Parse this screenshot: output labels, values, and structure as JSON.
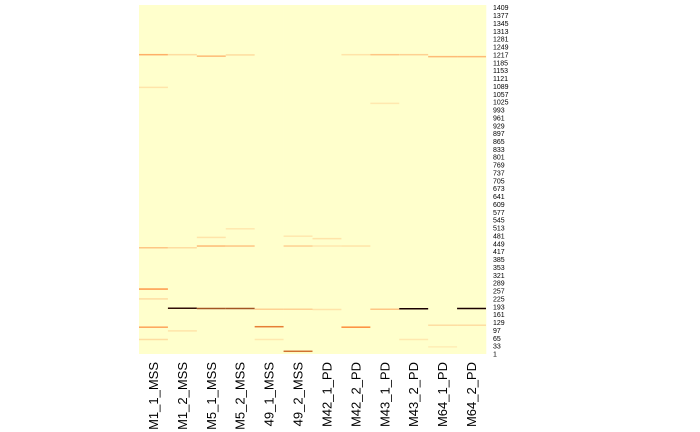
{
  "chart_data": {
    "type": "heatmap",
    "columns": [
      "M1_1_MSS",
      "M1_2_MSS",
      "M5_1_MSS",
      "M5_2_MSS",
      "49_1_MSS",
      "49_2_MSS",
      "M42_1_PD",
      "M42_2_PD",
      "M43_1_PD",
      "M43_2_PD",
      "M64_1_PD",
      "M64_2_PD"
    ],
    "y_ticks": [
      1,
      33,
      65,
      97,
      129,
      161,
      193,
      225,
      257,
      289,
      321,
      353,
      385,
      417,
      449,
      481,
      513,
      545,
      577,
      609,
      641,
      673,
      705,
      737,
      769,
      801,
      833,
      865,
      897,
      929,
      961,
      993,
      1025,
      1057,
      1089,
      1121,
      1153,
      1185,
      1217,
      1249,
      1281,
      1313,
      1345,
      1377,
      1409
    ],
    "row_range": [
      1,
      1420
    ],
    "colors": {
      "low": "#ffffcc",
      "mid": "#fd8d3c",
      "high": "#1a0000"
    },
    "background_intensity": 0,
    "highlights": [
      {
        "col": 0,
        "row": 1218,
        "intensity": 0.35
      },
      {
        "col": 0,
        "row": 1085,
        "intensity": 0.12
      },
      {
        "col": 0,
        "row": 433,
        "intensity": 0.25
      },
      {
        "col": 0,
        "row": 265,
        "intensity": 0.45
      },
      {
        "col": 0,
        "row": 225,
        "intensity": 0.15
      },
      {
        "col": 0,
        "row": 110,
        "intensity": 0.4
      },
      {
        "col": 0,
        "row": 60,
        "intensity": 0.15
      },
      {
        "col": 1,
        "row": 187,
        "intensity": 0.95
      },
      {
        "col": 1,
        "row": 1218,
        "intensity": 0.15
      },
      {
        "col": 1,
        "row": 433,
        "intensity": 0.15
      },
      {
        "col": 1,
        "row": 95,
        "intensity": 0.12
      },
      {
        "col": 2,
        "row": 186,
        "intensity": 0.7
      },
      {
        "col": 2,
        "row": 1212,
        "intensity": 0.3
      },
      {
        "col": 2,
        "row": 440,
        "intensity": 0.3
      },
      {
        "col": 2,
        "row": 475,
        "intensity": 0.12
      },
      {
        "col": 3,
        "row": 186,
        "intensity": 0.7
      },
      {
        "col": 3,
        "row": 440,
        "intensity": 0.25
      },
      {
        "col": 3,
        "row": 510,
        "intensity": 0.1
      },
      {
        "col": 3,
        "row": 1217,
        "intensity": 0.15
      },
      {
        "col": 4,
        "row": 112,
        "intensity": 0.55
      },
      {
        "col": 4,
        "row": 183,
        "intensity": 0.2
      },
      {
        "col": 4,
        "row": 60,
        "intensity": 0.1
      },
      {
        "col": 5,
        "row": 12,
        "intensity": 0.6
      },
      {
        "col": 5,
        "row": 183,
        "intensity": 0.2
      },
      {
        "col": 5,
        "row": 440,
        "intensity": 0.2
      },
      {
        "col": 5,
        "row": 480,
        "intensity": 0.1
      },
      {
        "col": 6,
        "row": 182,
        "intensity": 0.12
      },
      {
        "col": 6,
        "row": 470,
        "intensity": 0.12
      },
      {
        "col": 6,
        "row": 440,
        "intensity": 0.1
      },
      {
        "col": 7,
        "row": 110,
        "intensity": 0.5
      },
      {
        "col": 7,
        "row": 440,
        "intensity": 0.12
      },
      {
        "col": 7,
        "row": 1218,
        "intensity": 0.12
      },
      {
        "col": 8,
        "row": 183,
        "intensity": 0.25
      },
      {
        "col": 8,
        "row": 1218,
        "intensity": 0.25
      },
      {
        "col": 8,
        "row": 1020,
        "intensity": 0.1
      },
      {
        "col": 9,
        "row": 185,
        "intensity": 1.0
      },
      {
        "col": 9,
        "row": 1218,
        "intensity": 0.2
      },
      {
        "col": 9,
        "row": 60,
        "intensity": 0.1
      },
      {
        "col": 10,
        "row": 118,
        "intensity": 0.15
      },
      {
        "col": 10,
        "row": 1210,
        "intensity": 0.3
      },
      {
        "col": 10,
        "row": 30,
        "intensity": 0.08
      },
      {
        "col": 11,
        "row": 186,
        "intensity": 1.0
      },
      {
        "col": 11,
        "row": 1210,
        "intensity": 0.3
      },
      {
        "col": 11,
        "row": 118,
        "intensity": 0.15
      }
    ]
  }
}
